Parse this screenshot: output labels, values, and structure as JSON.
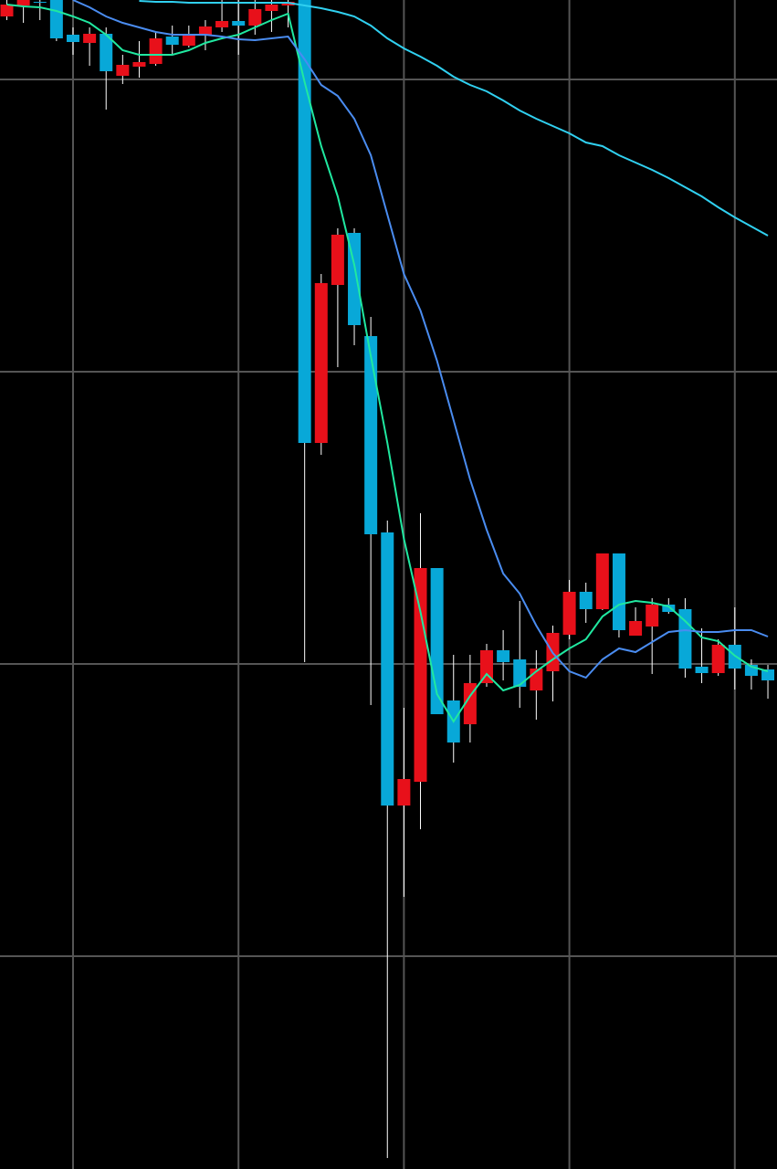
{
  "chart_data": {
    "type": "candlestick",
    "x": [
      0,
      1,
      2,
      3,
      4,
      5,
      6,
      7,
      8,
      9,
      10,
      11,
      12,
      13,
      14,
      15,
      16,
      17,
      18,
      19,
      20,
      21,
      22,
      23,
      24,
      25,
      26,
      27,
      28,
      29,
      30,
      31,
      32,
      33,
      34,
      35,
      36,
      37,
      38,
      39,
      40,
      41,
      42,
      43,
      44,
      45,
      46
    ],
    "open": [
      1262,
      1274,
      1278,
      1280,
      1242,
      1233,
      1243,
      1197,
      1207,
      1210,
      1240,
      1230,
      1242,
      1250,
      1257,
      1252,
      1268,
      1274,
      1280,
      795,
      968,
      1025,
      912,
      697,
      398,
      424,
      658,
      513,
      487,
      532,
      568,
      558,
      524,
      545,
      585,
      632,
      613,
      674,
      584,
      594,
      618,
      613,
      550,
      543,
      574,
      552,
      547
    ],
    "high": [
      1280,
      1280,
      1280,
      1280,
      1250,
      1250,
      1250,
      1220,
      1235,
      1245,
      1252,
      1252,
      1258,
      1280,
      1280,
      1280,
      1280,
      1280,
      1280,
      980,
      1030,
      1030,
      933,
      710,
      505,
      718,
      658,
      563,
      563,
      575,
      590,
      622,
      568,
      595,
      645,
      642,
      674,
      674,
      615,
      625,
      625,
      625,
      592,
      580,
      615,
      558,
      552
    ],
    "low": [
      1258,
      1255,
      1258,
      1235,
      1220,
      1208,
      1160,
      1188,
      1195,
      1208,
      1220,
      1228,
      1225,
      1245,
      1220,
      1242,
      1245,
      1250,
      555,
      782,
      878,
      902,
      508,
      12,
      298,
      372,
      498,
      445,
      467,
      528,
      535,
      505,
      492,
      512,
      580,
      598,
      612,
      582,
      584,
      542,
      608,
      538,
      532,
      540,
      525,
      525,
      515
    ],
    "close": [
      1275,
      1280,
      1277,
      1238,
      1234,
      1243,
      1202,
      1209,
      1212,
      1238,
      1231,
      1241,
      1251,
      1257,
      1252,
      1270,
      1275,
      1278,
      795,
      970,
      1023,
      924,
      695,
      398,
      427,
      658,
      498,
      467,
      532,
      568,
      555,
      528,
      548,
      587,
      632,
      613,
      674,
      590,
      600,
      618,
      610,
      548,
      543,
      574,
      548,
      540,
      535
    ],
    "up_color": "#e8101a",
    "down_color": "#08a8d8",
    "series": [
      {
        "color": "#20e8a0",
        "values": [
          1275,
          1273,
          1272,
          1268,
          1262,
          1255,
          1242,
          1225,
          1220,
          1220,
          1220,
          1225,
          1233,
          1238,
          1242,
          1250,
          1258,
          1265,
          1190,
          1120,
          1065,
          990,
          890,
          795,
          690,
          610,
          520,
          490,
          518,
          542,
          524,
          530,
          545,
          558,
          570,
          580,
          605,
          618,
          622,
          620,
          616,
          600,
          582,
          578,
          562,
          550,
          545
        ]
      },
      {
        "color": "#4a8cf0",
        "values": [
          null,
          null,
          null,
          null,
          1280,
          1272,
          1262,
          1255,
          1250,
          1245,
          1242,
          1242,
          1242,
          1240,
          1237,
          1236,
          1238,
          1240,
          1215,
          1187,
          1175,
          1150,
          1110,
          1045,
          980,
          940,
          885,
          820,
          755,
          700,
          652,
          630,
          595,
          565,
          545,
          538,
          558,
          570,
          566,
          577,
          588,
          590,
          588,
          588,
          590,
          590,
          583
        ]
      },
      {
        "color": "#30d0f0",
        "values": [
          null,
          null,
          null,
          null,
          null,
          null,
          null,
          null,
          1279,
          1278,
          1278,
          1277,
          1277,
          1277,
          1277,
          1277,
          1277,
          1277,
          1274,
          1271,
          1267,
          1262,
          1252,
          1238,
          1227,
          1218,
          1208,
          1196,
          1187,
          1180,
          1170,
          1159,
          1150,
          1142,
          1134,
          1124,
          1120,
          1110,
          1102,
          1094,
          1085,
          1075,
          1065,
          1053,
          1042,
          1032,
          1022
        ]
      }
    ],
    "xlim": [
      -0.414,
      46.55
    ],
    "ylim": [
      0,
      1280
    ],
    "xticks": [
      4,
      14,
      24,
      34,
      44
    ],
    "yticks": [
      233,
      553,
      873,
      1193
    ],
    "grid": true
  }
}
